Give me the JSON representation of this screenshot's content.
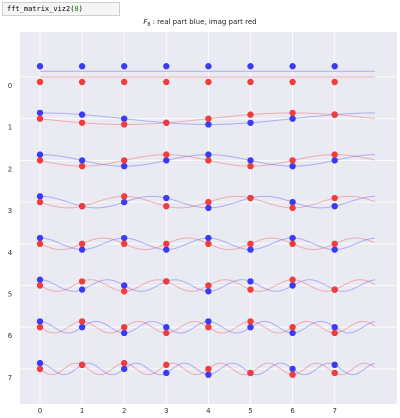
{
  "code": {
    "function_name": "fft_matrix_viz2",
    "argument": "8"
  },
  "chart_data": {
    "type": "scatter",
    "title_prefix": "F",
    "title_subscript": "8",
    "title_suffix": ": real part blue, imag part red",
    "n": 8,
    "x_ticks": [
      "0",
      "1",
      "2",
      "3",
      "4",
      "5",
      "6",
      "7"
    ],
    "y_ticks": [
      "0",
      "1",
      "2",
      "3",
      "4",
      "5",
      "6",
      "7"
    ],
    "xlim": [
      -0.5,
      8
    ],
    "series": [
      {
        "name": "real part",
        "color": "#3b3bf5"
      },
      {
        "name": "imag part",
        "color": "#f03c3c"
      }
    ],
    "background": "#eaeaf2",
    "grid": true,
    "smooth_curves": true
  }
}
